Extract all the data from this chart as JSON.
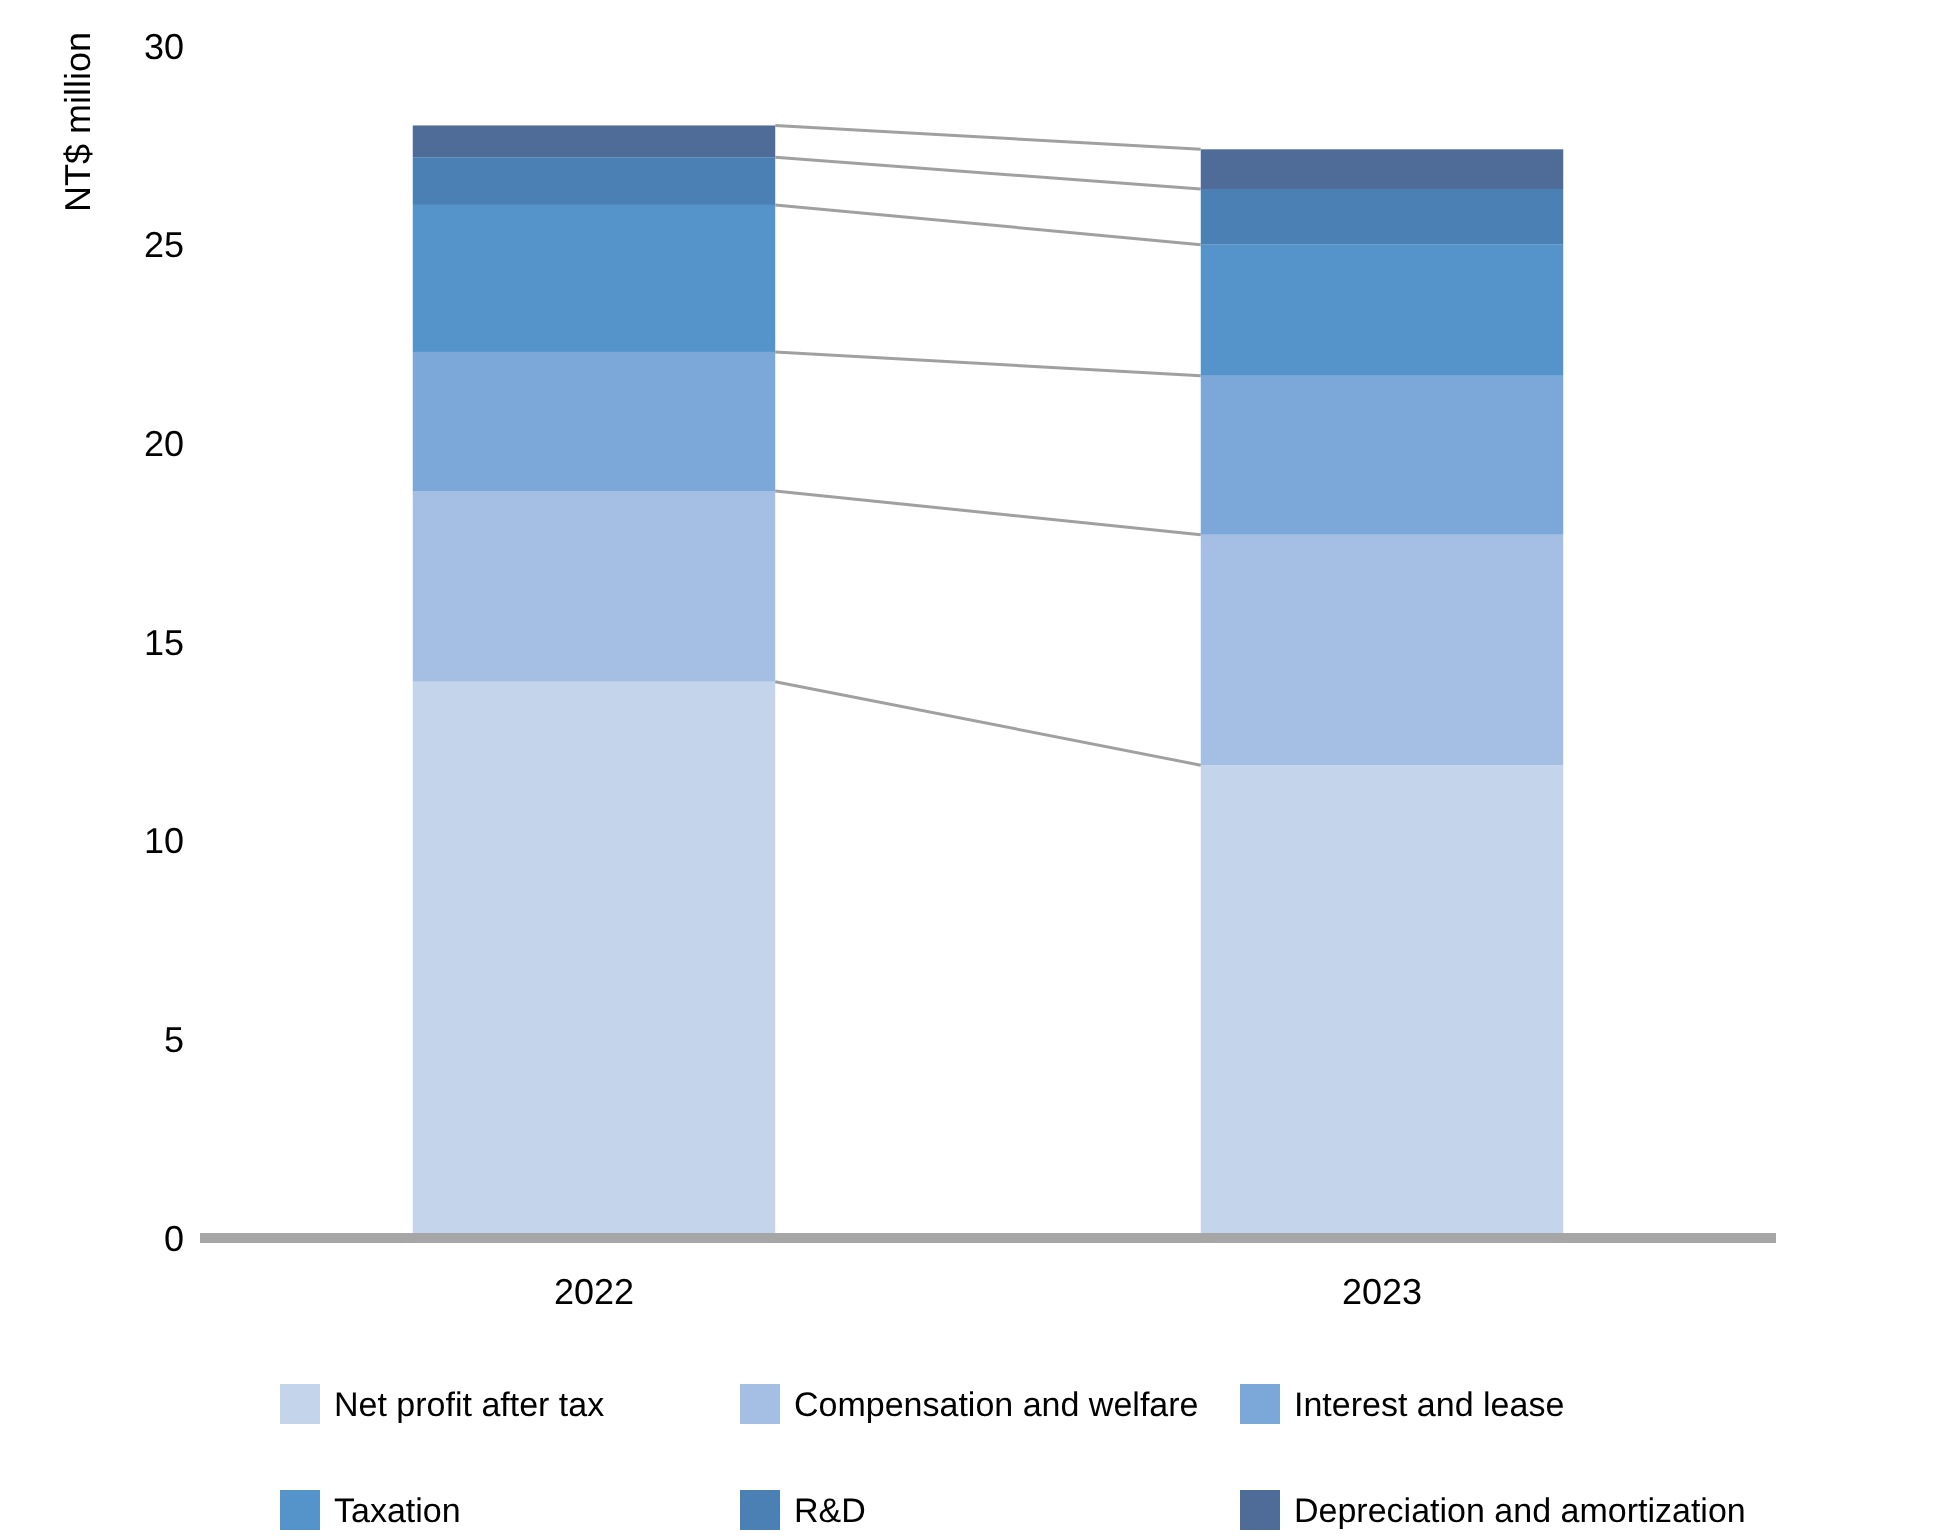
{
  "chart_data": {
    "type": "bar",
    "stacked": true,
    "ylabel": "NT$ million",
    "categories": [
      "2022",
      "2023"
    ],
    "series": [
      {
        "name": "Net profit after tax",
        "color": "#c4d5eb",
        "values": [
          14.0,
          11.9
        ]
      },
      {
        "name": "Compensation and welfare",
        "color": "#a4bfe3",
        "values": [
          4.8,
          5.8
        ]
      },
      {
        "name": "Interest and lease",
        "color": "#7ba8d9",
        "values": [
          3.5,
          4.0
        ]
      },
      {
        "name": "Taxation",
        "color": "#5593cb",
        "values": [
          3.7,
          3.3
        ]
      },
      {
        "name": "R&D",
        "color": "#4a80b4",
        "values": [
          1.2,
          1.4
        ]
      },
      {
        "name": "Depreciation and amortization",
        "color": "#4f6b98",
        "values": [
          0.8,
          1.0
        ]
      }
    ],
    "ylim": [
      0,
      30
    ],
    "yticks": [
      0,
      5,
      10,
      15,
      20,
      25,
      30
    ],
    "grid": false,
    "legend": "bottom"
  }
}
